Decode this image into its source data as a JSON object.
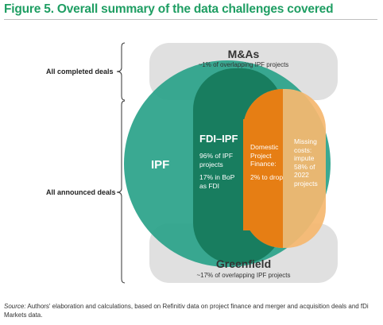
{
  "figure": {
    "title": "Figure 5. Overall summary of the data challenges covered"
  },
  "brackets": {
    "completed_label": "All completed deals",
    "announced_label": "All announced deals"
  },
  "ma_box": {
    "title": "M&As",
    "subtitle": "~1% of overlapping IPF projects"
  },
  "greenfield_box": {
    "title": "Greenfield",
    "subtitle": "~17% of overlapping IPF projects"
  },
  "ipf_circle": {
    "label": "IPF"
  },
  "fdi_ipf": {
    "title": "FDI–IPF",
    "line1": "96% of IPF",
    "line2": "projects",
    "line3": "17% in BoP",
    "line4": "as FDI"
  },
  "domestic": {
    "line1": "Domestic",
    "line2": "Project",
    "line3": "Finance:",
    "line4": "2% to drop"
  },
  "missing_costs": {
    "line1": "Missing",
    "line2": "costs:",
    "line3": "impute",
    "line4": "58% of",
    "line5": "2022",
    "line6": "projects"
  },
  "source": {
    "label": "Source:",
    "text": " Authors' elaboration and calculations, based on Refinitiv data on project finance and merger and acquisition deals and fDi Markets data."
  },
  "colors": {
    "title_green": "#1f9e63",
    "ipf_circle": "#2ba38a",
    "fdi_shape": "#167a5b",
    "orange_light": "#f5b870",
    "orange_dark": "#e67e14",
    "box_gray": "#e0e0e0",
    "bracket": "#333333"
  }
}
